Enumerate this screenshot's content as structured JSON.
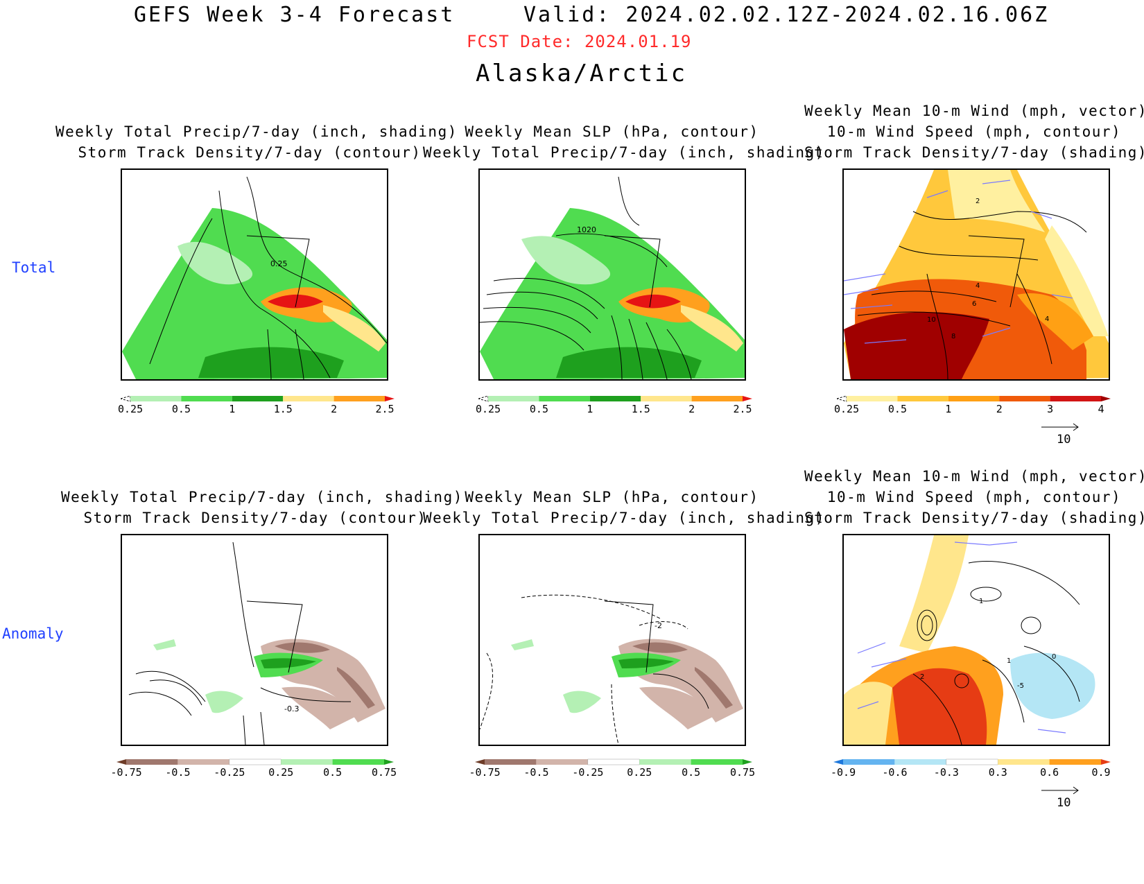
{
  "header": {
    "title": "GEFS Week 3-4 Forecast",
    "valid": "Valid: 2024.02.02.12Z-2024.02.16.06Z",
    "fcst_date": "FCST Date: 2024.01.19",
    "region": "Alaska/Arctic"
  },
  "rows": {
    "total_label": "Total",
    "anomaly_label": "Anomaly"
  },
  "panels": {
    "t1": {
      "line1": "Weekly Total Precip/7-day (inch, shading)",
      "line2": "Storm Track Density/7-day (contour)",
      "contour_label": "0.25"
    },
    "t2": {
      "line1": "Weekly Mean SLP (hPa, contour)",
      "line2": "Weekly Total Precip/7-day (inch, shading)",
      "contour_label": "1020"
    },
    "t3": {
      "line0": "Weekly Mean 10-m Wind (mph, vector)",
      "line1": "10-m Wind Speed (mph, contour)",
      "line2": "Storm Track Density/7-day (shading)",
      "contour_labels": [
        "2",
        "4",
        "6",
        "10",
        "8",
        "4"
      ]
    },
    "a1": {
      "line1": "Weekly Total Precip/7-day (inch, shading)",
      "line2": "Storm Track Density/7-day (contour)",
      "contour_label": "-0.3"
    },
    "a2": {
      "line1": "Weekly Mean SLP (hPa, contour)",
      "line2": "Weekly Total Precip/7-day (inch, shading)",
      "contour_label": "-2"
    },
    "a3": {
      "line0": "Weekly Mean 10-m Wind (mph, vector)",
      "line1": "10-m Wind Speed (mph, contour)",
      "line2": "Storm Track Density/7-day (shading)",
      "contour_labels": [
        "2",
        "1",
        "1",
        "-5",
        "0"
      ]
    }
  },
  "colorbars": {
    "precip_total": {
      "labels": [
        "0.25",
        "0.5",
        "1",
        "1.5",
        "2",
        "2.5"
      ],
      "colors": [
        "#ffffff",
        "#b4f0b4",
        "#50dc50",
        "#1ea01e",
        "#ffe68c",
        "#ffa01e",
        "#e61414"
      ]
    },
    "storm_total": {
      "labels": [
        "0.25",
        "0.5",
        "1",
        "2",
        "3",
        "4"
      ],
      "colors": [
        "#ffffff",
        "#fff0a0",
        "#ffc83c",
        "#ffa014",
        "#f05a0a",
        "#d21414",
        "#a00000"
      ]
    },
    "precip_anom": {
      "labels": [
        "-0.75",
        "-0.5",
        "-0.25",
        "0.25",
        "0.5",
        "0.75"
      ],
      "colors": [
        "#6e3c28",
        "#a0786e",
        "#d2b4aa",
        "#ffffff",
        "#b4f0b4",
        "#50dc50",
        "#1ea01e"
      ]
    },
    "storm_anom": {
      "labels": [
        "-0.9",
        "-0.6",
        "-0.3",
        "0.3",
        "0.6",
        "0.9"
      ],
      "colors": [
        "#1e78dc",
        "#64b4f0",
        "#b4e6f5",
        "#ffffff",
        "#ffe68c",
        "#ffa01e",
        "#e63c14"
      ]
    }
  },
  "vector_legend": {
    "value": "10"
  },
  "map_colors": {
    "light_green": "#b4f0b4",
    "green": "#50dc50",
    "dark_green": "#1ea01e",
    "yellow": "#ffe68c",
    "orange": "#ffa01e",
    "red": "#e61414",
    "brown_light": "#d2b4aa",
    "brown": "#a0786e",
    "storm_yellow": "#fff0a0",
    "storm_orange": "#ffa014",
    "storm_red": "#f05a0a",
    "storm_darkred": "#a00000",
    "anom_blue": "#b4e6f5",
    "vector": "#7a7aff"
  }
}
